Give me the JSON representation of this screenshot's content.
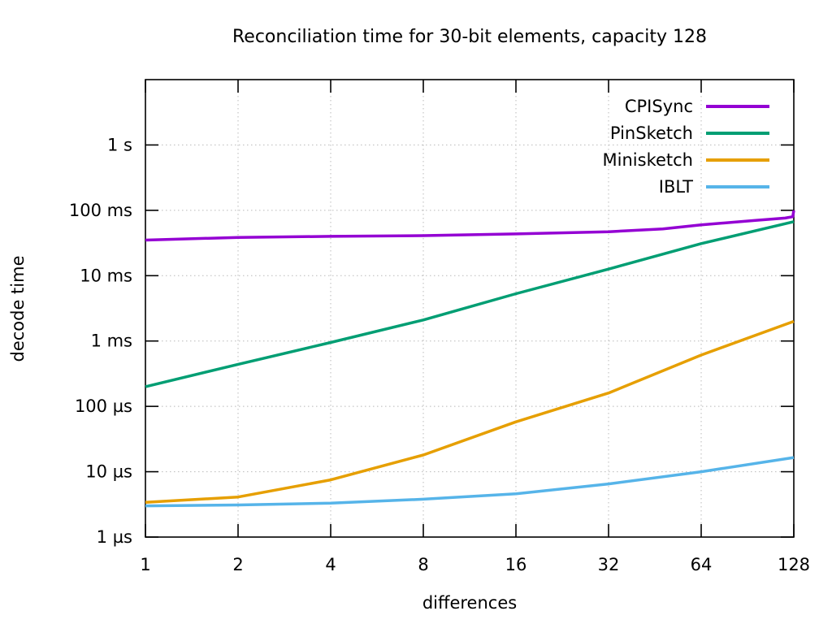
{
  "chart_data": {
    "type": "line",
    "title": "Reconciliation time for 30-bit elements, capacity 128",
    "xlabel": "differences",
    "ylabel": "decode time",
    "x_scale": "log2",
    "y_scale": "log10",
    "xlim": [
      1,
      128
    ],
    "ylim_us": [
      1,
      10000000
    ],
    "grid": true,
    "legend_position": "top-right-inside",
    "x_ticks": [
      1,
      2,
      4,
      8,
      16,
      32,
      64,
      128
    ],
    "y_ticks": [
      {
        "us": 1,
        "label": "1 µs"
      },
      {
        "us": 10,
        "label": "10 µs"
      },
      {
        "us": 100,
        "label": "100 µs"
      },
      {
        "us": 1000,
        "label": "1 ms"
      },
      {
        "us": 10000,
        "label": "10 ms"
      },
      {
        "us": 100000,
        "label": "100 ms"
      },
      {
        "us": 1000000,
        "label": "1 s"
      }
    ],
    "series": [
      {
        "name": "CPISync",
        "color": "#9400d3",
        "points_x": [
          1,
          2,
          4,
          8,
          16,
          32,
          48,
          64,
          96,
          120,
          127,
          128
        ],
        "points_us": [
          35000,
          38500,
          40000,
          41000,
          43500,
          47000,
          52000,
          60000,
          70000,
          76000,
          80000,
          100000
        ]
      },
      {
        "name": "PinSketch",
        "color": "#009e73",
        "points_x": [
          1,
          2,
          4,
          8,
          16,
          32,
          64,
          128
        ],
        "points_us": [
          200,
          440,
          950,
          2100,
          5300,
          12600,
          31000,
          67000
        ]
      },
      {
        "name": "Minisketch",
        "color": "#e69f00",
        "points_x": [
          1,
          2,
          4,
          8,
          16,
          32,
          64,
          128
        ],
        "points_us": [
          3.4,
          4.1,
          7.5,
          18,
          58,
          160,
          610,
          2000
        ]
      },
      {
        "name": "IBLT",
        "color": "#56b4e9",
        "points_x": [
          1,
          2,
          4,
          8,
          16,
          32,
          64,
          128
        ],
        "points_us": [
          3.0,
          3.1,
          3.3,
          3.8,
          4.6,
          6.5,
          10,
          16.5
        ]
      }
    ]
  }
}
